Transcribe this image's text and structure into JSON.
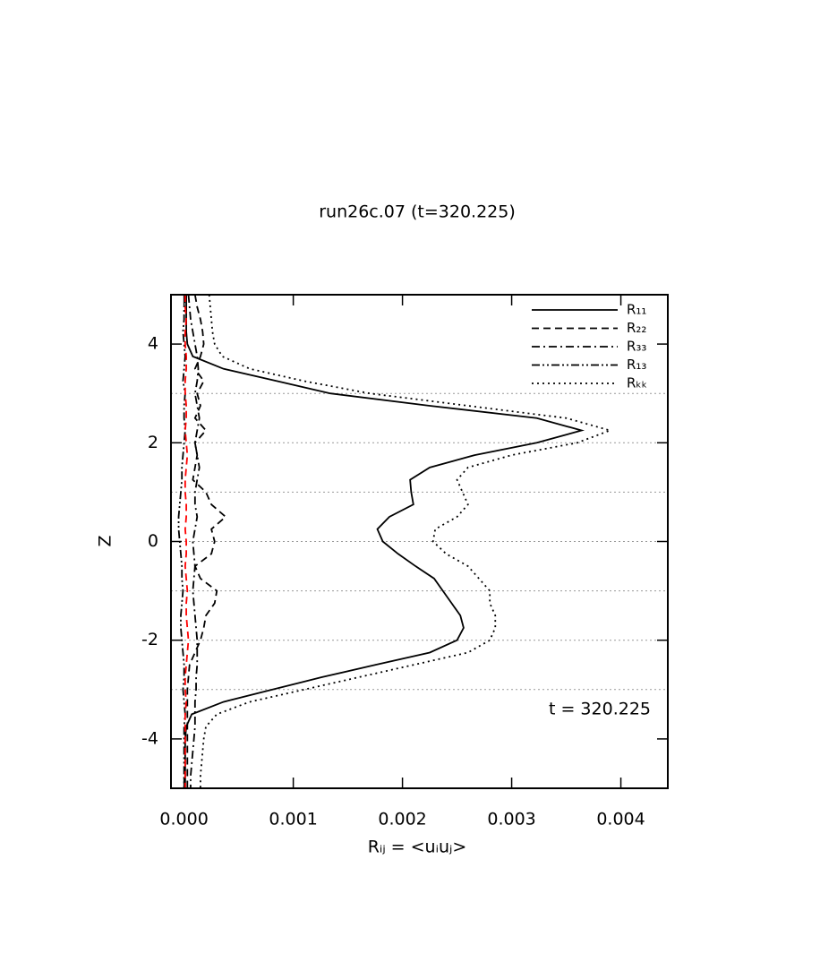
{
  "chart_data": {
    "type": "line",
    "title": "run26c.07 (t=320.225)",
    "xlabel": "Rᵢⱼ = <uᵢuⱼ>",
    "ylabel": "Z",
    "annotation": "t = 320.225",
    "xlim": [
      -0.00012,
      0.00443
    ],
    "ylim": [
      -5,
      5
    ],
    "xticks": [
      {
        "value": 0,
        "label": "0.000"
      },
      0.001,
      0.002,
      0.003,
      0.004
    ],
    "yticks": [
      -4,
      -2,
      0,
      2,
      4
    ],
    "grid_lines": [
      -3,
      -2,
      -1,
      0,
      1,
      2,
      3
    ],
    "legend": "upper right",
    "y": [
      5,
      4.75,
      4.5,
      4.25,
      4,
      3.75,
      3.5,
      3.25,
      3,
      2.75,
      2.5,
      2.25,
      2,
      1.75,
      1.5,
      1.25,
      1,
      0.75,
      0.5,
      0.25,
      0,
      -0.25,
      -0.5,
      -0.75,
      -1,
      -1.25,
      -1.5,
      -1.75,
      -2,
      -2.25,
      -2.5,
      -2.75,
      -3,
      -3.25,
      -3.5,
      -3.75,
      -4,
      -4.25,
      -4.5,
      -4.75,
      -5
    ],
    "series": [
      {
        "name": "R₁₁",
        "color": "#000000",
        "style": "solid",
        "values": [
          2e-05,
          2e-05,
          2e-05,
          2e-05,
          3e-05,
          8e-05,
          0.00036,
          0.00085,
          0.00134,
          0.00225,
          0.00323,
          0.00364,
          0.00323,
          0.00266,
          0.00225,
          0.00207,
          0.00208,
          0.0021,
          0.00188,
          0.00177,
          0.00182,
          0.00196,
          0.00212,
          0.00229,
          0.00237,
          0.00245,
          0.00253,
          0.00256,
          0.0025,
          0.00225,
          0.00175,
          0.00126,
          0.00081,
          0.00036,
          7e-05,
          2e-05,
          1e-05,
          1e-05,
          1e-05,
          1e-05,
          1e-05
        ]
      },
      {
        "name": "R₂₂",
        "color": "#000000",
        "style": "dashed",
        "values": [
          0.0001,
          0.00012,
          0.00015,
          0.00017,
          0.00018,
          0.00015,
          0.0001,
          0.00018,
          0.00012,
          0.00015,
          0.0001,
          0.0002,
          0.0001,
          0.00012,
          0.0001,
          8e-05,
          0.0002,
          0.00025,
          0.00038,
          0.00025,
          0.00028,
          0.00025,
          0.0001,
          0.00015,
          0.0003,
          0.00028,
          0.0002,
          0.00018,
          0.00015,
          0.0001,
          5e-05,
          4e-05,
          3e-05,
          3e-05,
          3e-05,
          3e-05,
          3e-05,
          3e-05,
          3e-05,
          3e-05,
          3e-05
        ]
      },
      {
        "name": "R₃₃",
        "color": "#000000",
        "style": "dashdot",
        "values": [
          4e-05,
          5e-05,
          6e-05,
          8e-05,
          0.0001,
          0.00012,
          0.00013,
          0.00012,
          0.0001,
          0.00012,
          0.00014,
          0.00012,
          0.0001,
          0.00012,
          0.00014,
          0.00012,
          0.0001,
          0.0001,
          0.00012,
          0.0001,
          8e-05,
          9e-05,
          0.0001,
          9e-05,
          8e-05,
          9e-05,
          0.0001,
          0.00011,
          0.00012,
          0.00012,
          0.00012,
          0.00011,
          0.00011,
          0.0001,
          0.0001,
          0.0001,
          9e-05,
          8e-05,
          7e-05,
          6e-05,
          6e-05
        ]
      },
      {
        "name": "R₁₃",
        "color": "#000000",
        "style": "dashdotdot",
        "values": [
          1e-05,
          0,
          0,
          -1e-05,
          0,
          1e-05,
          0,
          -1e-05,
          1e-05,
          0,
          0,
          1e-05,
          0,
          -1e-05,
          -2e-05,
          -2e-05,
          -3e-05,
          -4e-05,
          -5e-05,
          -5e-05,
          -4e-05,
          -3e-05,
          -2e-05,
          -2e-05,
          -1e-05,
          -2e-05,
          -3e-05,
          -3e-05,
          -2e-05,
          -1e-05,
          0,
          0,
          -1e-05,
          0,
          1e-05,
          0,
          0,
          0,
          0,
          0,
          0
        ]
      },
      {
        "name": "Rₖₖ",
        "color": "#000000",
        "style": "dotted",
        "values": [
          0.00023,
          0.00024,
          0.00025,
          0.00026,
          0.00028,
          0.00035,
          0.0006,
          0.0011,
          0.0017,
          0.0026,
          0.0035,
          0.0039,
          0.0036,
          0.003,
          0.0026,
          0.0025,
          0.00255,
          0.0026,
          0.0025,
          0.0023,
          0.00228,
          0.0024,
          0.0026,
          0.0027,
          0.0028,
          0.0028,
          0.00285,
          0.00285,
          0.0028,
          0.0026,
          0.0021,
          0.0016,
          0.0011,
          0.0006,
          0.0003,
          0.0002,
          0.00018,
          0.00017,
          0.00016,
          0.00015,
          0.00015
        ]
      },
      {
        "color": "#ff0000",
        "style": "dashed",
        "values": [
          1e-05,
          1e-05,
          2e-05,
          1e-05,
          1e-05,
          2e-05,
          2e-05,
          1e-05,
          1e-05,
          2e-05,
          2e-05,
          1e-05,
          2e-05,
          3e-05,
          2e-05,
          1e-05,
          1e-05,
          2e-05,
          2e-05,
          1e-05,
          2e-05,
          2e-05,
          1e-05,
          2e-05,
          3e-05,
          2e-05,
          2e-05,
          3e-05,
          4e-05,
          3e-05,
          2e-05,
          1e-05,
          1e-05,
          2e-05,
          1e-05,
          1e-05,
          1e-05,
          1e-05,
          1e-05,
          1e-05,
          1e-05
        ]
      }
    ]
  }
}
